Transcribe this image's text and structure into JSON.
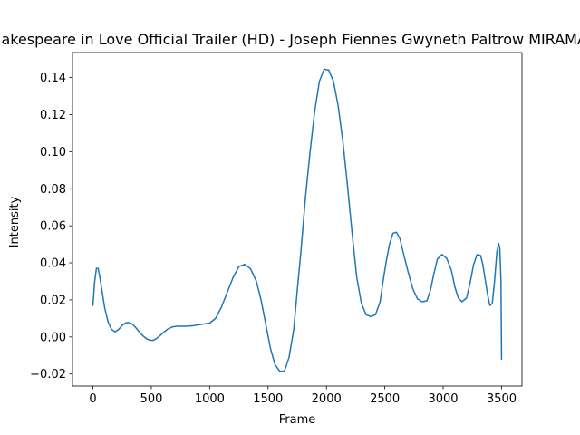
{
  "chart_data": {
    "type": "line",
    "title": "Shakespeare in Love  Official Trailer (HD) - Joseph Fiennes Gwyneth Paltrow  MIRAMAX",
    "xlabel": "Frame",
    "ylabel": "Intensity",
    "xlim": [
      -175,
      3675
    ],
    "ylim": [
      -0.0265,
      0.1535
    ],
    "xticks": [
      0,
      500,
      1000,
      1500,
      2000,
      2500,
      3000,
      3500
    ],
    "xtick_labels": [
      "0",
      "500",
      "1000",
      "1500",
      "2000",
      "2500",
      "3000",
      "3500"
    ],
    "yticks": [
      -0.02,
      0.0,
      0.02,
      0.04,
      0.06,
      0.08,
      0.1,
      0.12,
      0.14
    ],
    "ytick_labels": [
      "−0.02",
      "0.00",
      "0.02",
      "0.04",
      "0.06",
      "0.08",
      "0.10",
      "0.12",
      "0.14"
    ],
    "grid": false,
    "series": [
      {
        "color": "#1f77b4",
        "x": [
          0,
          15,
          30,
          45,
          60,
          80,
          100,
          130,
          160,
          190,
          220,
          250,
          280,
          310,
          340,
          370,
          400,
          430,
          460,
          490,
          520,
          560,
          600,
          640,
          680,
          720,
          760,
          800,
          850,
          900,
          950,
          1000,
          1050,
          1100,
          1150,
          1200,
          1250,
          1300,
          1350,
          1400,
          1440,
          1480,
          1520,
          1560,
          1600,
          1640,
          1680,
          1720,
          1750,
          1780,
          1820,
          1860,
          1900,
          1940,
          1980,
          2020,
          2060,
          2100,
          2140,
          2180,
          2220,
          2260,
          2300,
          2340,
          2380,
          2420,
          2460,
          2480,
          2510,
          2540,
          2570,
          2600,
          2630,
          2660,
          2700,
          2740,
          2780,
          2820,
          2860,
          2890,
          2920,
          2950,
          2990,
          3030,
          3070,
          3100,
          3130,
          3160,
          3200,
          3230,
          3260,
          3290,
          3320,
          3340,
          3360,
          3380,
          3400,
          3420,
          3440,
          3460,
          3475,
          3485,
          3495,
          3500
        ],
        "y": [
          0.017,
          0.03,
          0.037,
          0.037,
          0.032,
          0.024,
          0.016,
          0.008,
          0.004,
          0.0028,
          0.004,
          0.0062,
          0.0076,
          0.0078,
          0.0068,
          0.0048,
          0.0025,
          0.0005,
          -0.001,
          -0.0018,
          -0.0018,
          -0.0002,
          0.0022,
          0.0042,
          0.0054,
          0.0058,
          0.0058,
          0.0058,
          0.006,
          0.0065,
          0.007,
          0.0075,
          0.01,
          0.016,
          0.024,
          0.032,
          0.038,
          0.0392,
          0.0368,
          0.03,
          0.02,
          0.007,
          -0.006,
          -0.015,
          -0.0185,
          -0.0185,
          -0.011,
          0.004,
          0.025,
          0.045,
          0.075,
          0.1,
          0.122,
          0.138,
          0.1445,
          0.144,
          0.138,
          0.125,
          0.106,
          0.082,
          0.056,
          0.032,
          0.018,
          0.012,
          0.011,
          0.012,
          0.019,
          0.028,
          0.04,
          0.05,
          0.056,
          0.0565,
          0.053,
          0.045,
          0.035,
          0.026,
          0.0205,
          0.019,
          0.0195,
          0.025,
          0.034,
          0.042,
          0.0445,
          0.0425,
          0.036,
          0.027,
          0.021,
          0.019,
          0.021,
          0.029,
          0.039,
          0.0445,
          0.044,
          0.039,
          0.031,
          0.023,
          0.017,
          0.018,
          0.03,
          0.046,
          0.0505,
          0.048,
          0.03,
          -0.012
        ]
      }
    ]
  }
}
